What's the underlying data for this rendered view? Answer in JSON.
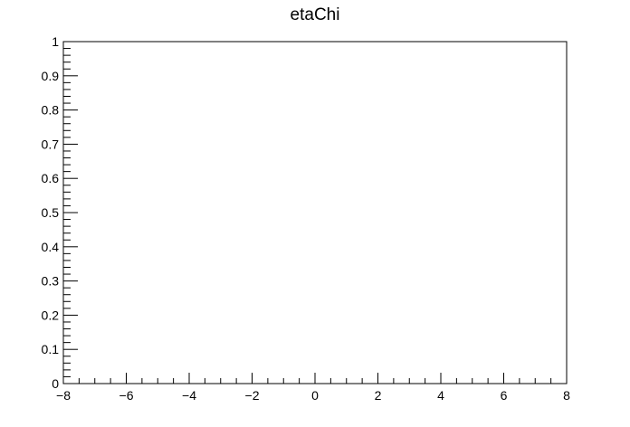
{
  "chart_data": {
    "type": "line",
    "title": "etaChi",
    "xlabel": "",
    "ylabel": "",
    "xlim": [
      -8,
      8
    ],
    "ylim": [
      0,
      1
    ],
    "x_ticks": [
      -8,
      -6,
      -4,
      -2,
      0,
      2,
      4,
      6,
      8
    ],
    "x_tick_labels": [
      "−8",
      "−6",
      "−4",
      "−2",
      "0",
      "2",
      "4",
      "6",
      "8"
    ],
    "y_ticks": [
      0,
      0.1,
      0.2,
      0.3,
      0.4,
      0.5,
      0.6,
      0.7,
      0.8,
      0.9,
      1
    ],
    "y_tick_labels": [
      "0",
      "0.1",
      "0.2",
      "0.3",
      "0.4",
      "0.5",
      "0.6",
      "0.7",
      "0.8",
      "0.9",
      "1"
    ],
    "series": [],
    "grid": false,
    "legend": "none"
  }
}
